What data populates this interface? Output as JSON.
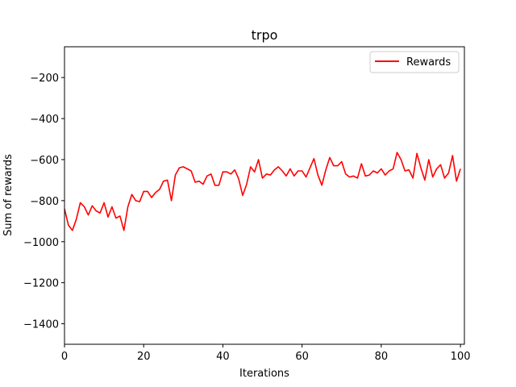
{
  "chart_data": {
    "type": "line",
    "title": "trpo",
    "xlabel": "Iterations",
    "ylabel": "Sum of rewards",
    "xlim": [
      0,
      101
    ],
    "ylim": [
      -1500,
      -50
    ],
    "xticks": [
      0,
      20,
      40,
      60,
      80,
      100
    ],
    "yticks": [
      -1400,
      -1200,
      -1000,
      -800,
      -600,
      -400,
      -200
    ],
    "grid": false,
    "legend_position": "top-right",
    "series": [
      {
        "name": "Rewards",
        "color": "#ff0000",
        "x": [
          0,
          1,
          2,
          3,
          4,
          5,
          6,
          7,
          8,
          9,
          10,
          11,
          12,
          13,
          14,
          15,
          16,
          17,
          18,
          19,
          20,
          21,
          22,
          23,
          24,
          25,
          26,
          27,
          28,
          29,
          30,
          31,
          32,
          33,
          34,
          35,
          36,
          37,
          38,
          39,
          40,
          41,
          42,
          43,
          44,
          45,
          46,
          47,
          48,
          49,
          50,
          51,
          52,
          53,
          54,
          55,
          56,
          57,
          58,
          59,
          60,
          61,
          62,
          63,
          64,
          65,
          66,
          67,
          68,
          69,
          70,
          71,
          72,
          73,
          74,
          75,
          76,
          77,
          78,
          79,
          80,
          81,
          82,
          83,
          84,
          85,
          86,
          87,
          88,
          89,
          90,
          91,
          92,
          93,
          94,
          95,
          96,
          97,
          98,
          99,
          100
        ],
        "values": [
          -840,
          -920,
          -945,
          -890,
          -810,
          -830,
          -870,
          -825,
          -850,
          -860,
          -810,
          -880,
          -830,
          -885,
          -875,
          -945,
          -830,
          -770,
          -800,
          -805,
          -755,
          -755,
          -785,
          -760,
          -745,
          -705,
          -700,
          -800,
          -675,
          -640,
          -635,
          -645,
          -655,
          -710,
          -705,
          -720,
          -680,
          -670,
          -725,
          -725,
          -660,
          -660,
          -670,
          -650,
          -695,
          -775,
          -720,
          -635,
          -660,
          -600,
          -690,
          -670,
          -675,
          -650,
          -635,
          -655,
          -680,
          -645,
          -680,
          -655,
          -655,
          -685,
          -640,
          -595,
          -675,
          -725,
          -650,
          -590,
          -630,
          -630,
          -610,
          -670,
          -685,
          -680,
          -690,
          -620,
          -680,
          -675,
          -655,
          -665,
          -645,
          -675,
          -655,
          -645,
          -565,
          -600,
          -655,
          -650,
          -690,
          -570,
          -640,
          -700,
          -600,
          -685,
          -645,
          -625,
          -690,
          -665,
          -580,
          -705,
          -645
        ]
      }
    ]
  }
}
